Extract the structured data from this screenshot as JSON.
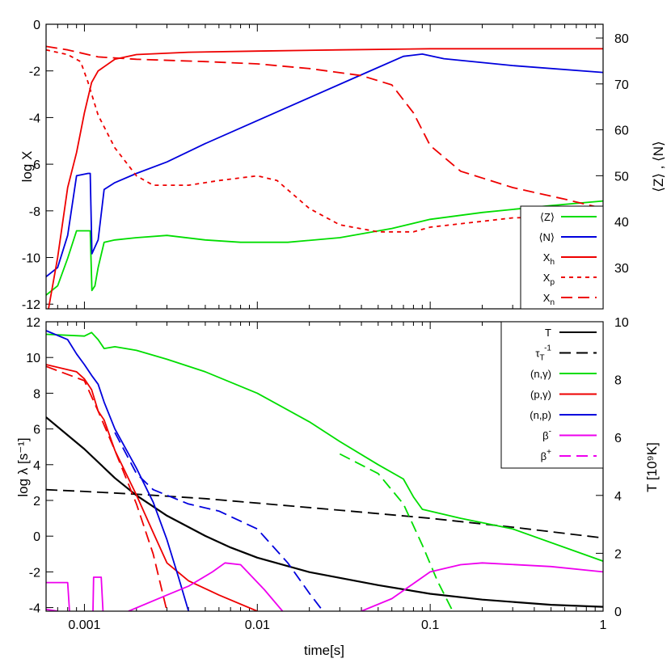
{
  "chart_data": [
    {
      "type": "line",
      "panel": "top",
      "xlabel": "",
      "xscale": "log",
      "xlim": [
        0.0006,
        1
      ],
      "ylabel_left": "log X",
      "ylim_left": [
        -12.2,
        0
      ],
      "yticks_left": [
        "0",
        "-2",
        "-4",
        "-6",
        "-8",
        "-10",
        "-12"
      ],
      "ylabel_right": "⟨Z⟩ , ⟨N⟩",
      "ylim_right": [
        21,
        83
      ],
      "yticks_right": [
        "80",
        "70",
        "60",
        "50",
        "40",
        "30"
      ],
      "legend_position": "bottom-right",
      "series": [
        {
          "name": "⟨Z⟩",
          "axis": "right",
          "color": "#00dd00",
          "dash": "solid",
          "points": [
            [
              0.0006,
              24
            ],
            [
              0.0007,
              26
            ],
            [
              0.0008,
              32
            ],
            [
              0.0009,
              38
            ],
            [
              0.00105,
              38
            ],
            [
              0.00108,
              38
            ],
            [
              0.001105,
              25
            ],
            [
              0.00115,
              26
            ],
            [
              0.0012,
              30
            ],
            [
              0.0013,
              35.5
            ],
            [
              0.0015,
              36
            ],
            [
              0.002,
              36.5
            ],
            [
              0.003,
              37
            ],
            [
              0.005,
              36
            ],
            [
              0.008,
              35.5
            ],
            [
              0.015,
              35.5
            ],
            [
              0.03,
              36.5
            ],
            [
              0.06,
              38.5
            ],
            [
              0.1,
              40.5
            ],
            [
              0.2,
              42
            ],
            [
              0.5,
              43.5
            ],
            [
              1,
              44.5
            ]
          ]
        },
        {
          "name": "⟨N⟩",
          "axis": "right",
          "color": "#0000dd",
          "dash": "solid",
          "points": [
            [
              0.0006,
              28
            ],
            [
              0.0007,
              30
            ],
            [
              0.0008,
              37
            ],
            [
              0.0009,
              50
            ],
            [
              0.00105,
              50.5
            ],
            [
              0.00108,
              50.5
            ],
            [
              0.001105,
              33
            ],
            [
              0.0012,
              36
            ],
            [
              0.0013,
              47
            ],
            [
              0.0015,
              48.5
            ],
            [
              0.002,
              50.5
            ],
            [
              0.003,
              53
            ],
            [
              0.005,
              57
            ],
            [
              0.01,
              62
            ],
            [
              0.02,
              67
            ],
            [
              0.04,
              72
            ],
            [
              0.07,
              76
            ],
            [
              0.09,
              76.5
            ],
            [
              0.12,
              75.5
            ],
            [
              0.3,
              74
            ],
            [
              1,
              72.5
            ]
          ]
        },
        {
          "name": "Xh",
          "axis": "left",
          "color": "#ee0000",
          "dash": "solid",
          "points": [
            [
              0.00062,
              -12.2
            ],
            [
              0.0007,
              -10
            ],
            [
              0.0008,
              -7
            ],
            [
              0.0009,
              -5.5
            ],
            [
              0.001,
              -3.8
            ],
            [
              0.0011,
              -2.5
            ],
            [
              0.0012,
              -2.0
            ],
            [
              0.0015,
              -1.5
            ],
            [
              0.002,
              -1.3
            ],
            [
              0.004,
              -1.2
            ],
            [
              0.01,
              -1.15
            ],
            [
              0.03,
              -1.1
            ],
            [
              0.1,
              -1.05
            ],
            [
              1,
              -1.05
            ]
          ]
        },
        {
          "name": "Xp",
          "axis": "left",
          "color": "#ee0000",
          "dash": "short",
          "points": [
            [
              0.0006,
              -1.1
            ],
            [
              0.0008,
              -1.3
            ],
            [
              0.00095,
              -1.6
            ],
            [
              0.00105,
              -2.5
            ],
            [
              0.0012,
              -3.9
            ],
            [
              0.0015,
              -5.3
            ],
            [
              0.002,
              -6.5
            ],
            [
              0.0025,
              -6.9
            ],
            [
              0.004,
              -6.9
            ],
            [
              0.006,
              -6.7
            ],
            [
              0.01,
              -6.5
            ],
            [
              0.013,
              -6.7
            ],
            [
              0.02,
              -7.9
            ],
            [
              0.03,
              -8.6
            ],
            [
              0.05,
              -8.9
            ],
            [
              0.08,
              -8.9
            ],
            [
              0.1,
              -8.7
            ],
            [
              0.3,
              -8.3
            ],
            [
              1,
              -8.2
            ]
          ]
        },
        {
          "name": "Xn",
          "axis": "left",
          "color": "#ee0000",
          "dash": "long",
          "points": [
            [
              0.0006,
              -0.95
            ],
            [
              0.0008,
              -1.1
            ],
            [
              0.0012,
              -1.4
            ],
            [
              0.002,
              -1.5
            ],
            [
              0.005,
              -1.6
            ],
            [
              0.01,
              -1.7
            ],
            [
              0.02,
              -1.9
            ],
            [
              0.04,
              -2.2
            ],
            [
              0.06,
              -2.6
            ],
            [
              0.08,
              -3.8
            ],
            [
              0.1,
              -5.2
            ],
            [
              0.15,
              -6.3
            ],
            [
              0.3,
              -7.0
            ],
            [
              0.6,
              -7.5
            ],
            [
              1,
              -7.9
            ]
          ]
        }
      ],
      "legend": [
        {
          "label": "⟨Z⟩",
          "sub": ""
        },
        {
          "label": "⟨N⟩",
          "sub": ""
        },
        {
          "label": "X",
          "sub": "h"
        },
        {
          "label": "X",
          "sub": "p"
        },
        {
          "label": "X",
          "sub": "n"
        }
      ]
    },
    {
      "type": "line",
      "panel": "bottom",
      "xlabel": "time[s]",
      "xscale": "log",
      "xlim": [
        0.0006,
        1
      ],
      "xticks": [
        {
          "value": 0.001,
          "label": "0.001"
        },
        {
          "value": 0.01,
          "label": "0.01"
        },
        {
          "value": 0.1,
          "label": "0.1"
        },
        {
          "value": 1,
          "label": "1"
        }
      ],
      "ylabel_left": "log λ [s⁻¹]",
      "ylim_left": [
        -4.2,
        12
      ],
      "yticks_left": [
        "12",
        "10",
        "8",
        "6",
        "4",
        "2",
        "0",
        "-2",
        "-4"
      ],
      "ylabel_right": "T [10⁹K]",
      "ylim_right": [
        0,
        10
      ],
      "yticks_right": [
        "10",
        "8",
        "6",
        "4",
        "2",
        "0"
      ],
      "legend_position": "top-right",
      "series": [
        {
          "name": "T",
          "axis": "right",
          "color": "#000000",
          "dash": "solid",
          "points": [
            [
              0.0006,
              6.7
            ],
            [
              0.001,
              5.6
            ],
            [
              0.0015,
              4.6
            ],
            [
              0.002,
              4.0
            ],
            [
              0.003,
              3.3
            ],
            [
              0.005,
              2.6
            ],
            [
              0.007,
              2.2
            ],
            [
              0.01,
              1.85
            ],
            [
              0.02,
              1.35
            ],
            [
              0.05,
              0.9
            ],
            [
              0.1,
              0.6
            ],
            [
              0.2,
              0.4
            ],
            [
              0.5,
              0.22
            ],
            [
              1,
              0.15
            ]
          ]
        },
        {
          "name": "τT⁻¹",
          "axis": "left",
          "color": "#000000",
          "dash": "long",
          "points": [
            [
              0.0006,
              2.6
            ],
            [
              0.001,
              2.5
            ],
            [
              0.002,
              2.35
            ],
            [
              0.005,
              2.1
            ],
            [
              0.01,
              1.85
            ],
            [
              0.03,
              1.45
            ],
            [
              0.1,
              1.0
            ],
            [
              0.3,
              0.5
            ],
            [
              1,
              -0.1
            ]
          ]
        },
        {
          "name": "(n,γ)",
          "axis": "left",
          "color": "#00dd00",
          "dash": "solid",
          "points": [
            [
              0.0006,
              11.3
            ],
            [
              0.001,
              11.2
            ],
            [
              0.0011,
              11.4
            ],
            [
              0.0012,
              11.0
            ],
            [
              0.0013,
              10.5
            ],
            [
              0.0015,
              10.6
            ],
            [
              0.002,
              10.4
            ],
            [
              0.003,
              9.9
            ],
            [
              0.005,
              9.2
            ],
            [
              0.01,
              8.0
            ],
            [
              0.02,
              6.4
            ],
            [
              0.03,
              5.3
            ],
            [
              0.05,
              4.0
            ],
            [
              0.07,
              3.2
            ],
            [
              0.08,
              2.2
            ],
            [
              0.09,
              1.5
            ],
            [
              0.15,
              1.0
            ],
            [
              0.3,
              0.4
            ],
            [
              1,
              -1.4
            ]
          ]
        },
        {
          "name": "(n,γ) dashed",
          "axis": "left",
          "color": "#00dd00",
          "dash": "long",
          "points": [
            [
              0.03,
              4.6
            ],
            [
              0.05,
              3.5
            ],
            [
              0.07,
              1.8
            ],
            [
              0.09,
              -0.5
            ],
            [
              0.11,
              -2.5
            ],
            [
              0.135,
              -4.2
            ]
          ]
        },
        {
          "name": "(p,γ)",
          "axis": "left",
          "color": "#ee0000",
          "dash": "solid",
          "points": [
            [
              0.0006,
              9.6
            ],
            [
              0.0009,
              9.2
            ],
            [
              0.001,
              8.8
            ],
            [
              0.0011,
              8.2
            ],
            [
              0.0012,
              7.0
            ],
            [
              0.0013,
              6.5
            ],
            [
              0.0015,
              4.8
            ],
            [
              0.002,
              2.3
            ],
            [
              0.0025,
              0.2
            ],
            [
              0.003,
              -1.5
            ],
            [
              0.004,
              -2.5
            ],
            [
              0.006,
              -3.3
            ],
            [
              0.01,
              -4.2
            ]
          ]
        },
        {
          "name": "(p,γ) dashed",
          "axis": "left",
          "color": "#ee0000",
          "dash": "long",
          "points": [
            [
              0.0006,
              9.5
            ],
            [
              0.001,
              8.7
            ],
            [
              0.0012,
              7.0
            ],
            [
              0.0015,
              4.8
            ],
            [
              0.002,
              1.8
            ],
            [
              0.0025,
              -1.0
            ],
            [
              0.003,
              -4.2
            ]
          ]
        },
        {
          "name": "(n,p)",
          "axis": "left",
          "color": "#0000dd",
          "dash": "solid",
          "points": [
            [
              0.0006,
              11.5
            ],
            [
              0.0008,
              11.0
            ],
            [
              0.0009,
              10.2
            ],
            [
              0.001,
              9.6
            ],
            [
              0.0011,
              9.0
            ],
            [
              0.0012,
              8.5
            ],
            [
              0.0013,
              7.5
            ],
            [
              0.0015,
              6.0
            ],
            [
              0.002,
              3.8
            ],
            [
              0.0025,
              1.9
            ],
            [
              0.003,
              -0.2
            ],
            [
              0.0035,
              -2.3
            ],
            [
              0.004,
              -4.2
            ]
          ]
        },
        {
          "name": "(n,p) dashed",
          "axis": "left",
          "color": "#0000dd",
          "dash": "long",
          "points": [
            [
              0.0015,
              5.8
            ],
            [
              0.002,
              3.5
            ],
            [
              0.0025,
              2.6
            ],
            [
              0.004,
              1.8
            ],
            [
              0.006,
              1.4
            ],
            [
              0.01,
              0.4
            ],
            [
              0.015,
              -1.5
            ],
            [
              0.02,
              -3.2
            ],
            [
              0.024,
              -4.2
            ]
          ]
        },
        {
          "name": "β⁻",
          "axis": "left",
          "color": "#ee00ee",
          "dash": "solid",
          "points": [
            [
              0.0006,
              -2.6
            ],
            [
              0.0008,
              -2.6
            ],
            [
              0.00082,
              -4.2
            ]
          ]
        },
        {
          "name": "β⁻ b",
          "axis": "left",
          "color": "#ee00ee",
          "dash": "solid",
          "points": [
            [
              0.00112,
              -4.2
            ],
            [
              0.00113,
              -2.3
            ],
            [
              0.00125,
              -2.3
            ],
            [
              0.00128,
              -4.2
            ]
          ]
        },
        {
          "name": "β⁻ c",
          "axis": "left",
          "color": "#ee00ee",
          "dash": "solid",
          "points": [
            [
              0.0018,
              -4.2
            ],
            [
              0.003,
              -3.3
            ],
            [
              0.004,
              -2.8
            ],
            [
              0.0055,
              -2.0
            ],
            [
              0.0065,
              -1.5
            ],
            [
              0.008,
              -1.6
            ],
            [
              0.011,
              -3.0
            ],
            [
              0.014,
              -4.2
            ]
          ]
        },
        {
          "name": "β⁻ d",
          "axis": "left",
          "color": "#ee00ee",
          "dash": "solid",
          "points": [
            [
              0.04,
              -4.2
            ],
            [
              0.06,
              -3.5
            ],
            [
              0.1,
              -2.0
            ],
            [
              0.15,
              -1.6
            ],
            [
              0.2,
              -1.5
            ],
            [
              0.5,
              -1.7
            ],
            [
              1,
              -2.0
            ]
          ]
        },
        {
          "name": "β⁺",
          "axis": "left",
          "color": "#ee00ee",
          "dash": "long",
          "points": [
            [
              0.0006,
              -4.1
            ],
            [
              0.0007,
              -4.2
            ]
          ]
        }
      ],
      "legend": [
        {
          "label": "T",
          "sup": "",
          "sub": "",
          "color": "#000000",
          "dash": "solid"
        },
        {
          "label": "τ",
          "sup": "-1",
          "sub": "T",
          "color": "#000000",
          "dash": "long"
        },
        {
          "label": "(n,γ)",
          "sup": "",
          "sub": "",
          "color": "#00dd00",
          "dash": "solid"
        },
        {
          "label": "(p,γ)",
          "sup": "",
          "sub": "",
          "color": "#ee0000",
          "dash": "solid"
        },
        {
          "label": "(n,p)",
          "sup": "",
          "sub": "",
          "color": "#0000dd",
          "dash": "solid"
        },
        {
          "label": "β",
          "sup": "-",
          "sub": "",
          "color": "#ee00ee",
          "dash": "solid"
        },
        {
          "label": "β",
          "sup": "+",
          "sub": "",
          "color": "#ee00ee",
          "dash": "long"
        }
      ]
    }
  ]
}
